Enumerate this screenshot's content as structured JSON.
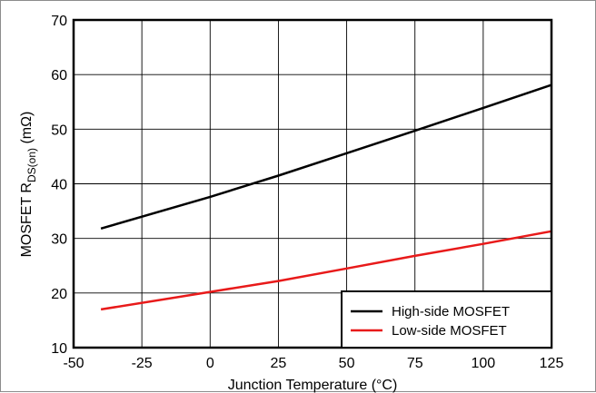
{
  "chart_data": {
    "type": "line",
    "title": "",
    "xlabel": "Junction Temperature (°C)",
    "ylabel": {
      "main": "MOSFET R",
      "subscript": "DS(on)",
      "unit": " (mΩ)"
    },
    "xlim": [
      -50,
      125
    ],
    "ylim": [
      10,
      70
    ],
    "xticks": [
      -50,
      -25,
      0,
      25,
      50,
      75,
      100,
      125
    ],
    "yticks": [
      10,
      20,
      30,
      40,
      50,
      60,
      70
    ],
    "grid": true,
    "legend_position": "bottom-right",
    "series": [
      {
        "name": "High-side MOSFET",
        "color": "#000000",
        "x": [
          -40,
          0,
          25,
          50,
          75,
          100,
          125
        ],
        "y": [
          31.8,
          37.6,
          41.5,
          45.6,
          49.7,
          53.9,
          58.1
        ]
      },
      {
        "name": "Low-side MOSFET",
        "color": "#e81a1a",
        "x": [
          -40,
          0,
          25,
          50,
          75,
          100,
          125
        ],
        "y": [
          17.0,
          20.2,
          22.2,
          24.5,
          26.8,
          29.0,
          31.3
        ]
      }
    ]
  }
}
